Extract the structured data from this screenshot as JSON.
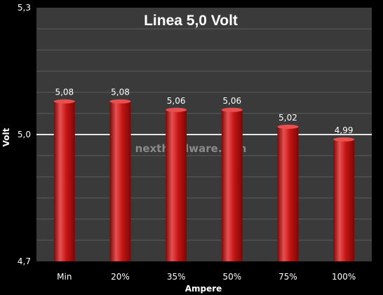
{
  "chart_data": {
    "type": "bar",
    "title": "Linea 5,0 Volt",
    "xlabel": "Ampere",
    "ylabel": "Volt",
    "categories": [
      "Min",
      "20%",
      "35%",
      "50%",
      "75%",
      "100%"
    ],
    "values": [
      5.08,
      5.08,
      5.06,
      5.06,
      5.02,
      4.99
    ],
    "value_labels": [
      "5,08",
      "5,08",
      "5,06",
      "5,06",
      "5,02",
      "4,99"
    ],
    "ylim": [
      4.7,
      5.3
    ],
    "yticks": [
      4.7,
      5.0,
      5.3
    ],
    "ytick_labels": [
      "4,7",
      "5,0",
      "5,3"
    ],
    "reference_line": 5.0,
    "grid": true,
    "legend": "none",
    "watermark": "nexthardware.com",
    "colors": {
      "background": "#000000",
      "plot_area": "#3a3a3a",
      "gridline": "#5a5a5a",
      "reference_line": "#e6e6e6",
      "bar_main": "#c41414",
      "bar_light": "#e85050",
      "bar_dark": "#7a0808",
      "text": "#ffffff",
      "watermark": "#8a8a8a"
    }
  }
}
